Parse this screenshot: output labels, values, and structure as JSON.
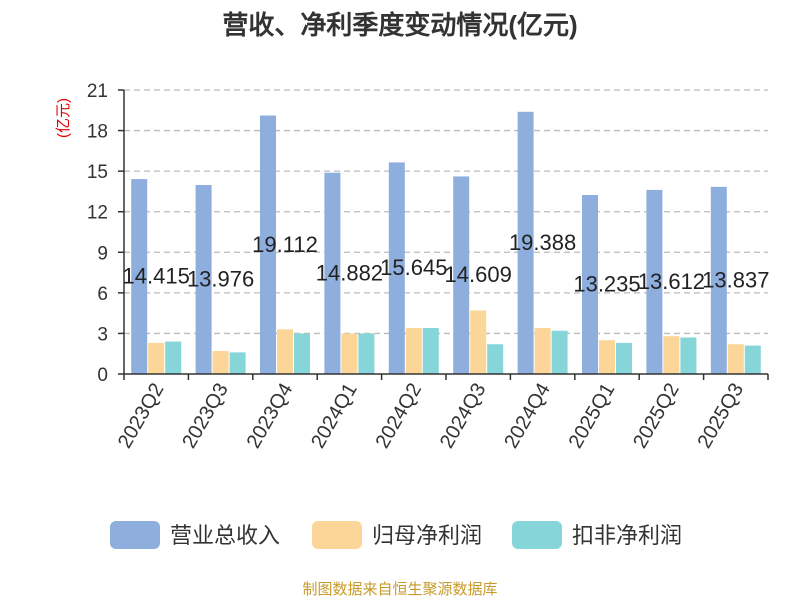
{
  "chart_data": {
    "type": "bar",
    "title": "营收、净利季度变动情况(亿元)",
    "ylabel": "(亿元)",
    "xlabel": "",
    "ylim": [
      0,
      21
    ],
    "yticks": [
      0,
      3,
      6,
      9,
      12,
      15,
      18,
      21
    ],
    "grid": true,
    "legend_position": "bottom",
    "categories": [
      "2023Q2",
      "2023Q3",
      "2023Q4",
      "2024Q1",
      "2024Q2",
      "2024Q3",
      "2024Q4",
      "2025Q1",
      "2025Q2",
      "2025Q3"
    ],
    "series": [
      {
        "name": "营业总收入",
        "color": "#8eaedd",
        "values": [
          14.415,
          13.976,
          19.112,
          14.882,
          15.645,
          14.609,
          19.388,
          13.235,
          13.612,
          13.837
        ],
        "labels": [
          "14.415",
          "13.976",
          "19.112",
          "14.882",
          "15.645",
          "14.609",
          "19.388",
          "13.235",
          "13.612",
          "13.837"
        ]
      },
      {
        "name": "归母净利润",
        "color": "#fcd699",
        "values": [
          2.3,
          1.7,
          3.3,
          3.0,
          3.4,
          4.7,
          3.4,
          2.5,
          2.8,
          2.2
        ]
      },
      {
        "name": "扣非净利润",
        "color": "#86d5d8",
        "values": [
          2.4,
          1.6,
          3.0,
          3.0,
          3.4,
          2.2,
          3.2,
          2.3,
          2.7,
          2.1
        ]
      }
    ],
    "source": "制图数据来自恒生聚源数据库"
  }
}
